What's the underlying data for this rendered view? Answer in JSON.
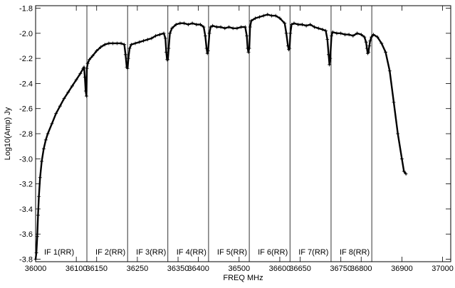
{
  "chart_data": {
    "type": "line",
    "title": "",
    "xlabel": "FREQ MHz",
    "ylabel": "Log10(Amp) Jy",
    "xlim": [
      36000,
      37020
    ],
    "ylim": [
      -3.82,
      -1.78
    ],
    "x_ticks": [
      36000,
      36100,
      36150,
      36250,
      36350,
      36400,
      36500,
      36600,
      36650,
      36750,
      36800,
      36900,
      37000
    ],
    "x_tick_labels": [
      "36000",
      "36100",
      "36150",
      "36250",
      "36350",
      "36400",
      "36500",
      "36600",
      "36650",
      "36750",
      "36800",
      "36900",
      "37000"
    ],
    "y_ticks": [
      -3.8,
      -3.6,
      -3.4,
      -3.2,
      -3.0,
      -2.8,
      -2.6,
      -2.4,
      -2.2,
      -2.0,
      -1.8
    ],
    "y_tick_labels": [
      "-3.8",
      "-3.6",
      "-3.4",
      "-3.2",
      "-3.0",
      "-2.8",
      "-2.6",
      "-2.4",
      "-2.2",
      "-2.0",
      "-1.8"
    ],
    "if_boundaries": [
      36000,
      36126,
      36226,
      36325,
      36425,
      36525,
      36625,
      36726,
      36826
    ],
    "if_labels": [
      "IF 1(RR)",
      "IF 2(RR)",
      "IF 3(RR)",
      "IF 4(RR)",
      "IF 5(RR)",
      "IF 6(RR)",
      "IF 7(RR)",
      "IF 8(RR)"
    ],
    "grid": false,
    "series": [
      {
        "points": [
          [
            36000,
            -3.8
          ],
          [
            36002,
            -3.75
          ],
          [
            36004,
            -3.62
          ],
          [
            36006,
            -3.45
          ],
          [
            36008,
            -3.3
          ],
          [
            36011,
            -3.15
          ],
          [
            36015,
            -3.02
          ],
          [
            36020,
            -2.92
          ],
          [
            36025,
            -2.85
          ],
          [
            36030,
            -2.8
          ],
          [
            36040,
            -2.72
          ],
          [
            36050,
            -2.64
          ],
          [
            36060,
            -2.58
          ],
          [
            36070,
            -2.52
          ],
          [
            36080,
            -2.47
          ],
          [
            36090,
            -2.42
          ],
          [
            36100,
            -2.37
          ],
          [
            36110,
            -2.32
          ],
          [
            36117,
            -2.28
          ],
          [
            36119,
            -2.27
          ],
          [
            36121,
            -2.35
          ],
          [
            36123,
            -2.46
          ],
          [
            36125,
            -2.5
          ],
          [
            36126,
            -2.28
          ],
          [
            36128,
            -2.24
          ],
          [
            36132,
            -2.21
          ],
          [
            36140,
            -2.18
          ],
          [
            36150,
            -2.14
          ],
          [
            36160,
            -2.11
          ],
          [
            36170,
            -2.09
          ],
          [
            36180,
            -2.08
          ],
          [
            36190,
            -2.08
          ],
          [
            36200,
            -2.08
          ],
          [
            36210,
            -2.08
          ],
          [
            36218,
            -2.09
          ],
          [
            36221,
            -2.17
          ],
          [
            36224,
            -2.27
          ],
          [
            36226,
            -2.28
          ],
          [
            36228,
            -2.2
          ],
          [
            36231,
            -2.12
          ],
          [
            36235,
            -2.09
          ],
          [
            36245,
            -2.08
          ],
          [
            36255,
            -2.07
          ],
          [
            36265,
            -2.06
          ],
          [
            36275,
            -2.05
          ],
          [
            36285,
            -2.04
          ],
          [
            36295,
            -2.02
          ],
          [
            36305,
            -2.01
          ],
          [
            36315,
            -2.0
          ],
          [
            36319,
            -2.04
          ],
          [
            36321,
            -2.15
          ],
          [
            36323,
            -2.21
          ],
          [
            36325,
            -2.21
          ],
          [
            36327,
            -2.12
          ],
          [
            36330,
            -2.0
          ],
          [
            36335,
            -1.96
          ],
          [
            36345,
            -1.93
          ],
          [
            36355,
            -1.92
          ],
          [
            36365,
            -1.92
          ],
          [
            36375,
            -1.93
          ],
          [
            36385,
            -1.92
          ],
          [
            36395,
            -1.93
          ],
          [
            36405,
            -1.93
          ],
          [
            36413,
            -1.95
          ],
          [
            36417,
            -2.02
          ],
          [
            36420,
            -2.12
          ],
          [
            36422,
            -2.16
          ],
          [
            36424,
            -2.14
          ],
          [
            36427,
            -2.0
          ],
          [
            36430,
            -1.95
          ],
          [
            36435,
            -1.94
          ],
          [
            36445,
            -1.95
          ],
          [
            36455,
            -1.95
          ],
          [
            36465,
            -1.96
          ],
          [
            36475,
            -1.95
          ],
          [
            36485,
            -1.96
          ],
          [
            36495,
            -1.96
          ],
          [
            36505,
            -1.95
          ],
          [
            36515,
            -1.95
          ],
          [
            36519,
            -2.02
          ],
          [
            36521,
            -2.12
          ],
          [
            36523,
            -2.15
          ],
          [
            36525,
            -2.12
          ],
          [
            36527,
            -1.95
          ],
          [
            36530,
            -1.9
          ],
          [
            36540,
            -1.88
          ],
          [
            36550,
            -1.87
          ],
          [
            36560,
            -1.86
          ],
          [
            36570,
            -1.85
          ],
          [
            36580,
            -1.86
          ],
          [
            36590,
            -1.86
          ],
          [
            36600,
            -1.88
          ],
          [
            36612,
            -1.92
          ],
          [
            36616,
            -2.0
          ],
          [
            36620,
            -2.1
          ],
          [
            36622,
            -2.13
          ],
          [
            36624,
            -2.12
          ],
          [
            36626,
            -2.0
          ],
          [
            36629,
            -1.93
          ],
          [
            36635,
            -1.92
          ],
          [
            36645,
            -1.93
          ],
          [
            36655,
            -1.93
          ],
          [
            36665,
            -1.94
          ],
          [
            36675,
            -1.93
          ],
          [
            36685,
            -1.95
          ],
          [
            36695,
            -1.96
          ],
          [
            36705,
            -1.97
          ],
          [
            36713,
            -1.98
          ],
          [
            36717,
            -2.05
          ],
          [
            36720,
            -2.17
          ],
          [
            36722,
            -2.25
          ],
          [
            36724,
            -2.2
          ],
          [
            36727,
            -2.02
          ],
          [
            36730,
            -1.99
          ],
          [
            36740,
            -2.0
          ],
          [
            36750,
            -2.0
          ],
          [
            36760,
            -2.01
          ],
          [
            36770,
            -2.01
          ],
          [
            36780,
            -2.02
          ],
          [
            36790,
            -2.0
          ],
          [
            36800,
            -2.01
          ],
          [
            36808,
            -2.03
          ],
          [
            36812,
            -2.07
          ],
          [
            36814,
            -2.12
          ],
          [
            36816,
            -2.16
          ],
          [
            36818,
            -2.15
          ],
          [
            36820,
            -2.1
          ],
          [
            36822,
            -2.06
          ],
          [
            36825,
            -2.03
          ],
          [
            36830,
            -2.01
          ],
          [
            36840,
            -2.03
          ],
          [
            36850,
            -2.08
          ],
          [
            36860,
            -2.15
          ],
          [
            36870,
            -2.3
          ],
          [
            36880,
            -2.55
          ],
          [
            36890,
            -2.8
          ],
          [
            36900,
            -3.0
          ],
          [
            36905,
            -3.1
          ],
          [
            36910,
            -3.12
          ]
        ]
      }
    ]
  }
}
